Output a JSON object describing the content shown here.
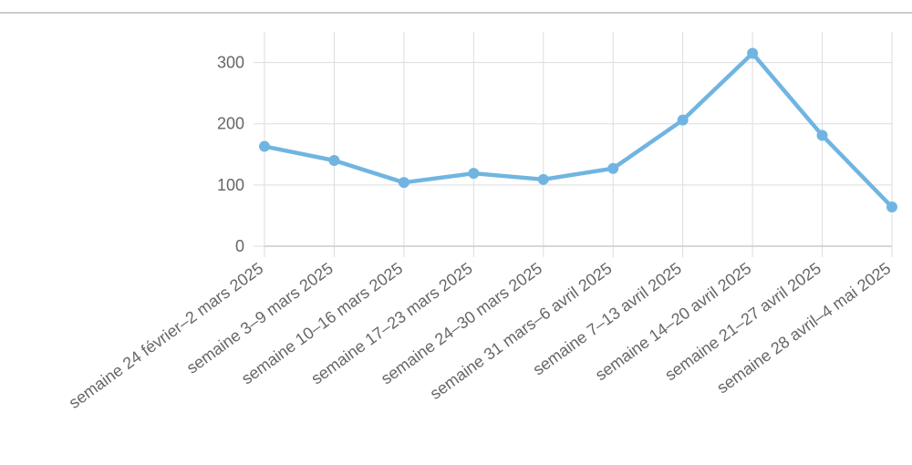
{
  "chart_data": {
    "type": "line",
    "categories": [
      "semaine 24 février–2 mars 2025",
      "semaine 3–9 mars 2025",
      "semaine 10–16 mars 2025",
      "semaine 17–23 mars 2025",
      "semaine 24–30 mars 2025",
      "semaine 31 mars–6 avril 2025",
      "semaine 7–13 avril 2025",
      "semaine 14–20 avril 2025",
      "semaine 21–27 avril 2025",
      "semaine 28 avril–4 mai 2025"
    ],
    "values": [
      163,
      140,
      104,
      119,
      109,
      127,
      206,
      315,
      181,
      64
    ],
    "color": "#70b5e1",
    "ylim": [
      0,
      350
    ],
    "yticks": [
      0,
      100,
      200,
      300
    ],
    "grid": true
  }
}
